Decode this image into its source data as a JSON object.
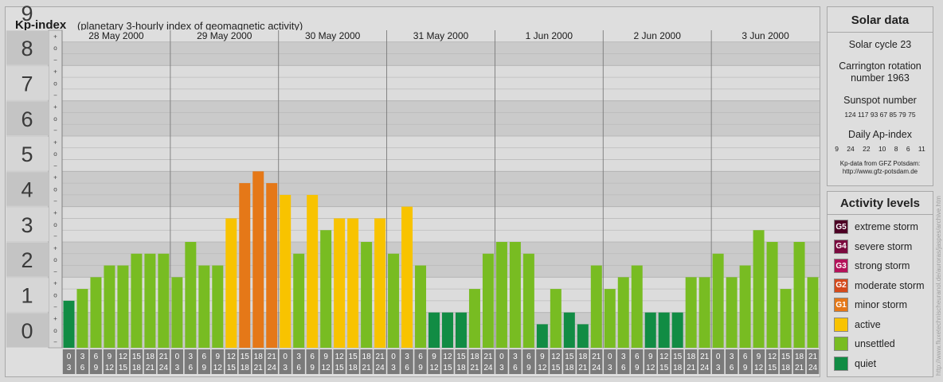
{
  "header": {
    "title": "Kp-index",
    "subtitle": "(planetary 3-hourly index of geomagnetic activity)"
  },
  "chart_data": {
    "type": "bar",
    "title": "Kp-index",
    "subtitle": "(planetary 3-hourly index of geomagnetic activity)",
    "ylim": [
      0,
      9
    ],
    "y_major_labels": [
      "0",
      "1",
      "2",
      "3",
      "4",
      "5",
      "6",
      "7",
      "8",
      "9"
    ],
    "y_minor_labels": [
      "−",
      "o",
      "+"
    ],
    "days": [
      "28 May 2000",
      "29 May 2000",
      "30 May 2000",
      "31 May 2000",
      "1 Jun 2000",
      "2 Jun 2000",
      "3 Jun 2000"
    ],
    "intervals_top": [
      "0",
      "3",
      "6",
      "9",
      "12",
      "15",
      "18",
      "21"
    ],
    "intervals_bottom": [
      "3",
      "6",
      "9",
      "12",
      "15",
      "18",
      "21",
      "24"
    ],
    "values": [
      1.333,
      1.667,
      2,
      2.333,
      2.333,
      2.667,
      2.667,
      2.667,
      2,
      3,
      2.333,
      2.333,
      3.667,
      4.667,
      5,
      4.667,
      4.333,
      2.667,
      4.333,
      3.333,
      3.667,
      3.667,
      3,
      3.667,
      2.667,
      4,
      2.333,
      1,
      1,
      1,
      1.667,
      2.667,
      3,
      3,
      2.667,
      0.667,
      1.667,
      1,
      0.667,
      2.333,
      1.667,
      2,
      2.333,
      1,
      1,
      1,
      2,
      2,
      2.667,
      2,
      2.333,
      3.333,
      3,
      1.667,
      3,
      2
    ],
    "thresholds": {
      "quiet": "< 1.667",
      "unsettled": "1.667–3.333",
      "active": "3.667–4.333",
      "minor_storm": "4.667–5.333"
    },
    "colors": {
      "quiet": "#118c44",
      "unsettled": "#78bc22",
      "active": "#f8c300",
      "minor_storm": "#e57818"
    }
  },
  "solar": {
    "title": "Solar data",
    "cycle": "Solar cycle 23",
    "carrington_line1": "Carrington rotation",
    "carrington_line2": "number 1963",
    "sunspot_label": "Sunspot number",
    "sunspot_values": "124 117 93 67 85 79 75",
    "ap_label": "Daily Ap-index",
    "ap_values": "9 24 22 10 8 6 11",
    "source_line1": "Kp-data from GFZ Potsdam:",
    "source_line2": "http://www.gfz-potsdam.de"
  },
  "activity": {
    "title": "Activity levels",
    "levels": [
      {
        "code": "G5",
        "label": "extreme storm",
        "color": "#4d0025"
      },
      {
        "code": "G4",
        "label": "severe storm",
        "color": "#7b0b3f"
      },
      {
        "code": "G3",
        "label": "strong storm",
        "color": "#b4135a"
      },
      {
        "code": "G2",
        "label": "moderate storm",
        "color": "#d44a1c"
      },
      {
        "code": "G1",
        "label": "minor storm",
        "color": "#e57818"
      },
      {
        "code": "",
        "label": "active",
        "color": "#f8c300"
      },
      {
        "code": "",
        "label": "unsettled",
        "color": "#78bc22"
      },
      {
        "code": "",
        "label": "quiet",
        "color": "#118c44"
      }
    ]
  },
  "watermark": "http://www.fluxetechnischeuranol.de/auroras/jaspes/archive.htm"
}
